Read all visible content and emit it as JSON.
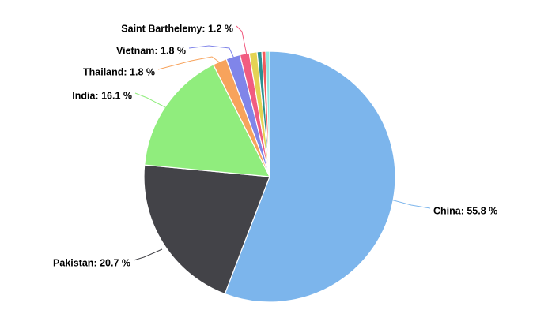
{
  "chart_data": {
    "type": "pie",
    "title": "",
    "slices": [
      {
        "label": "China",
        "value": 55.8,
        "display": "China: 55.8 %",
        "color": "#7cb5ec",
        "labeled": true
      },
      {
        "label": "Pakistan",
        "value": 20.7,
        "display": "Pakistan: 20.7 %",
        "color": "#434348",
        "labeled": true
      },
      {
        "label": "India",
        "value": 16.1,
        "display": "India: 16.1 %",
        "color": "#90ed7d",
        "labeled": true
      },
      {
        "label": "Thailand",
        "value": 1.8,
        "display": "Thailand: 1.8 %",
        "color": "#f7a35c",
        "labeled": true
      },
      {
        "label": "Vietnam",
        "value": 1.8,
        "display": "Vietnam: 1.8 %",
        "color": "#8085e9",
        "labeled": true
      },
      {
        "label": "Saint Barthelemy",
        "value": 1.2,
        "display": "Saint Barthelemy: 1.2 %",
        "color": "#f15c80",
        "labeled": true
      },
      {
        "label": "",
        "value": 1.0,
        "display": "",
        "color": "#e4d354",
        "labeled": false
      },
      {
        "label": "",
        "value": 0.6,
        "display": "",
        "color": "#2b908f",
        "labeled": false
      },
      {
        "label": "",
        "value": 0.5,
        "display": "",
        "color": "#f45b5b",
        "labeled": false
      },
      {
        "label": "",
        "value": 0.5,
        "display": "",
        "color": "#91e8e1",
        "labeled": false
      }
    ],
    "start_angle": "top (12 o'clock), clockwise",
    "legend": "none",
    "data_labels": "outside with connector lines"
  }
}
